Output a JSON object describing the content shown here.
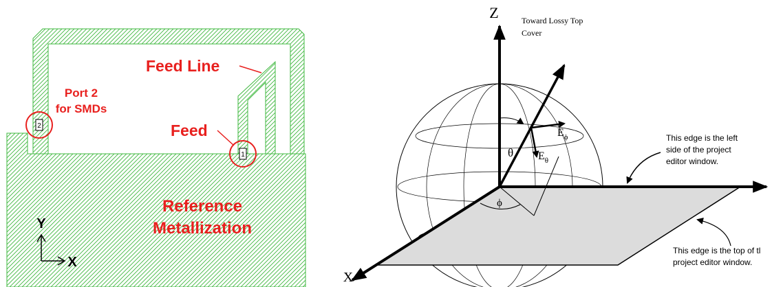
{
  "left": {
    "feed_line_label": "Feed Line",
    "port2_label_line1": "Port 2",
    "port2_label_line2": "for SMDs",
    "feed_label": "Feed",
    "reference_line1": "Reference",
    "reference_line2": "Metallization",
    "port1_number": "1",
    "port2_number": "2",
    "axis_y": "Y",
    "axis_x": "X",
    "colors": {
      "hatch": "#3fb83f",
      "label_red": "#e8201e"
    }
  },
  "right": {
    "axis_z": "Z",
    "axis_x": "X",
    "toward_line1": "Toward Lossy Top",
    "toward_line2": "Cover",
    "theta": "θ",
    "phi": "ϕ",
    "e_phi_base": "E",
    "e_phi_sub": "ϕ",
    "e_theta_base": "E",
    "e_theta_sub": "θ",
    "left_edge_note": [
      "This edge is the left",
      "side of the project",
      "editor window."
    ],
    "top_edge_note": [
      "This edge is the top of tl",
      "project editor window."
    ],
    "colors": {
      "plane_fill": "#dcdcdc"
    }
  }
}
